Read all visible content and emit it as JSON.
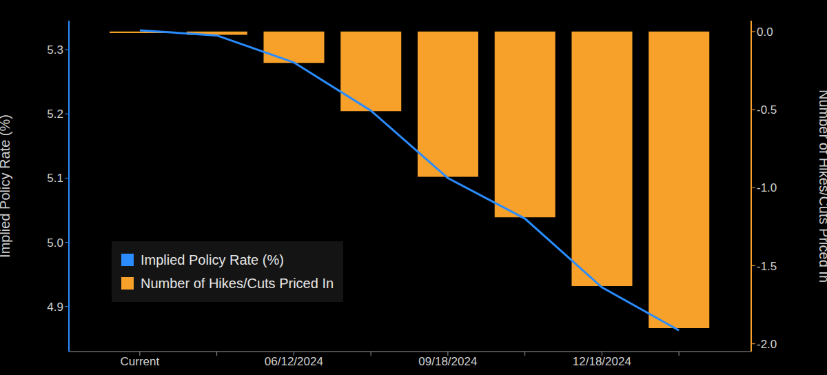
{
  "chart_data": {
    "type": "combo",
    "categories": [
      "Current",
      null,
      "06/12/2024",
      null,
      "09/18/2024",
      null,
      "12/18/2024",
      null
    ],
    "series": [
      {
        "name": "Implied Policy Rate (%)",
        "type": "line",
        "color": "#2a8cff",
        "values": [
          5.33,
          5.322,
          5.28,
          5.205,
          5.1,
          5.037,
          4.93,
          4.863
        ]
      },
      {
        "name": "Number of Hikes/Cuts Priced In",
        "type": "bar",
        "color": "#f7a12a",
        "axis": "y2",
        "values": [
          -0.01,
          -0.02,
          -0.2,
          -0.51,
          -0.93,
          -1.19,
          -1.63,
          -1.9
        ]
      }
    ],
    "y_label": "Implied Policy Rate (%)",
    "y2_label": "Number of Hikes/Cuts Priced In",
    "ylim": [
      4.83,
      5.345
    ],
    "yticks": [
      4.9,
      {
        "value": 5,
        "label": "5.0"
      },
      5.1,
      5.2,
      5.3
    ],
    "y2lim": [
      -2.05,
      0.07
    ],
    "y2ticks": [
      {
        "value": 0,
        "label": "0.0"
      },
      -0.5,
      {
        "value": -1,
        "label": "-1.0"
      },
      -1.5,
      {
        "value": -2,
        "label": "-2.0"
      }
    ],
    "grid": false,
    "legend": "lower left"
  }
}
